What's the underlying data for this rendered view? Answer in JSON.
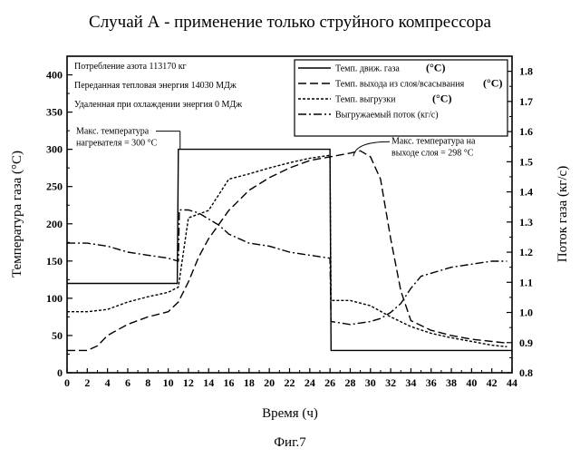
{
  "chart_data": {
    "type": "line",
    "title": "Случай А - применение только струйного компрессора",
    "caption": "Фиг.7",
    "xlabel": "Время (ч)",
    "ylabel_left": "Температура газа (°C)",
    "ylabel_right": "Поток газа (кг/с)",
    "xlim": [
      0,
      44
    ],
    "ylim_left": [
      0,
      425
    ],
    "ylim_right": [
      0.8,
      1.85
    ],
    "x_ticks": [
      0,
      2,
      4,
      6,
      8,
      10,
      12,
      14,
      16,
      18,
      20,
      22,
      24,
      26,
      28,
      30,
      32,
      34,
      36,
      38,
      40,
      42,
      44
    ],
    "x_tick_labels": [
      "0",
      "2",
      "4",
      "6",
      "8",
      "10",
      "12",
      "14",
      "16",
      "18",
      "20",
      "22",
      "24",
      "26",
      "28",
      "30",
      "32",
      "34",
      "36",
      "38",
      "40",
      "42",
      "44"
    ],
    "y_left_ticks": [
      0,
      50,
      100,
      150,
      200,
      250,
      300,
      350,
      400
    ],
    "y_left_tick_labels": [
      "0",
      "50",
      "100",
      "150",
      "200",
      "250",
      "300",
      "350",
      "400"
    ],
    "y_right_ticks": [
      0.8,
      0.9,
      1.0,
      1.1,
      1.2,
      1.3,
      1.4,
      1.5,
      1.6,
      1.7,
      1.8
    ],
    "y_right_tick_labels": [
      "0.8",
      "0.9",
      "1.0",
      "1.1",
      "1.2",
      "1.3",
      "1.4",
      "1.5",
      "1.6",
      "1.7",
      "1.8"
    ],
    "info_lines": [
      "Потребление азота   113170 кг",
      "Переданная тепловая энергия   14030 МДж",
      "Удаленная при охлаждении энергия 0 МДж"
    ],
    "legend": [
      {
        "label": "Темп. движ. газа",
        "unit": "(°C)",
        "dash": ""
      },
      {
        "label": "Темп. выхода из слоя/всасывания",
        "unit": "(°C)",
        "dash": "9 4"
      },
      {
        "label": "Темп. выгрузки",
        "unit": "(°C)",
        "dash": "3 2"
      },
      {
        "label": "Выгружаемый поток (кг/с)",
        "unit": "",
        "dash": "9 3 2 3"
      }
    ],
    "annotations": [
      {
        "lines": [
          "Макс. температура",
          "нагревателя = 300 °C"
        ],
        "x": 11,
        "y": 300
      },
      {
        "lines": [
          "Макс. температура на",
          "выходе слоя = 298 °C"
        ],
        "x": 28.5,
        "y": 298
      }
    ],
    "series": [
      {
        "name": "Темп. движ. газа",
        "axis": "left",
        "dash": "",
        "x": [
          0,
          10.9,
          11,
          26,
          26.1,
          44
        ],
        "y": [
          120,
          120,
          300,
          300,
          30,
          30
        ]
      },
      {
        "name": "Темп. выхода из слоя/всасывания",
        "axis": "left",
        "dash": "9 4",
        "x": [
          0,
          2,
          3,
          4,
          6,
          8,
          10,
          11,
          12,
          13,
          14,
          16,
          18,
          20,
          22,
          24,
          26,
          28,
          29,
          30,
          31,
          32,
          33,
          34,
          36,
          38,
          40,
          42,
          43.5
        ],
        "y": [
          30,
          30,
          36,
          50,
          65,
          75,
          82,
          95,
          122,
          155,
          180,
          218,
          245,
          262,
          275,
          285,
          290,
          295,
          298,
          290,
          260,
          180,
          110,
          70,
          57,
          50,
          45,
          42,
          40
        ]
      },
      {
        "name": "Темп. выгрузки",
        "axis": "left",
        "dash": "3 2",
        "x": [
          0,
          2,
          4,
          6,
          8,
          10,
          11,
          12,
          13,
          14,
          16,
          18,
          20,
          22,
          24,
          26,
          26.1,
          28,
          30,
          32,
          34,
          36,
          38,
          40,
          42,
          43.5
        ],
        "y": [
          82,
          82,
          85,
          95,
          102,
          108,
          115,
          208,
          213,
          218,
          260,
          267,
          275,
          282,
          288,
          292,
          97,
          97,
          90,
          75,
          62,
          53,
          47,
          42,
          37,
          35
        ]
      },
      {
        "name": "Выгружаемый поток (кг/с)",
        "axis": "right",
        "dash": "9 3 2 3",
        "x": [
          0,
          2,
          4,
          6,
          8,
          10,
          11,
          11.1,
          12,
          13,
          14,
          15,
          16,
          18,
          20,
          22,
          24,
          26,
          26.1,
          28,
          30,
          31,
          32,
          33,
          34,
          35,
          36,
          38,
          40,
          42,
          43.5
        ],
        "y": [
          1.23,
          1.23,
          1.22,
          1.2,
          1.19,
          1.18,
          1.17,
          1.34,
          1.34,
          1.33,
          1.31,
          1.29,
          1.26,
          1.23,
          1.22,
          1.2,
          1.19,
          1.18,
          0.97,
          0.96,
          0.97,
          0.98,
          1.0,
          1.03,
          1.08,
          1.12,
          1.13,
          1.15,
          1.16,
          1.17,
          1.17
        ]
      }
    ]
  }
}
